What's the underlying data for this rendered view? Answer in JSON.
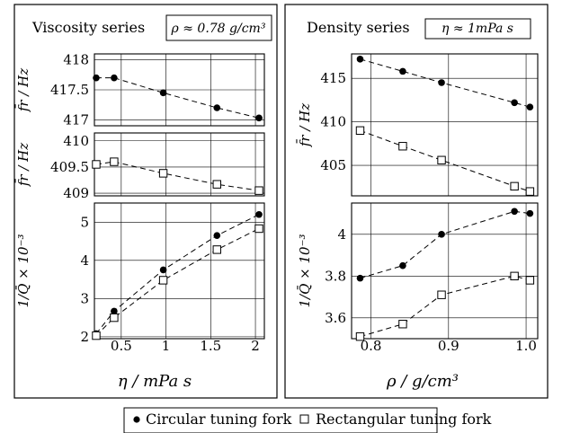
{
  "chart_data": [
    {
      "type": "scatter",
      "panel": "viscosity",
      "title": "Viscosity series",
      "title_condition": "ρ ≈ 0.78 g/cm³",
      "xlabel": "η / mPa s",
      "xlim": [
        0.2,
        2.1
      ],
      "xticks": [
        "0.5",
        "1",
        "1.5",
        "2"
      ],
      "subplots": [
        {
          "ylabel": "f̄r / Hz",
          "ylim": [
            416.9,
            418.1
          ],
          "yticks": [
            "418",
            "417.5",
            "417"
          ],
          "series": [
            {
              "name": "Circular tuning fork",
              "marker": "filled-circle",
              "x": [
                0.22,
                0.42,
                0.97,
                1.57,
                2.04
              ],
              "y": [
                417.7,
                417.7,
                417.45,
                417.2,
                417.03
              ]
            }
          ]
        },
        {
          "ylabel": "f̄r / Hz",
          "ylim": [
            408.95,
            410.15
          ],
          "yticks": [
            "410",
            "409.5",
            "409"
          ],
          "series": [
            {
              "name": "Rectangular tuning fork",
              "marker": "open-square",
              "x": [
                0.22,
                0.42,
                0.97,
                1.57,
                2.04
              ],
              "y": [
                409.55,
                409.6,
                409.38,
                409.17,
                409.05
              ]
            }
          ]
        },
        {
          "ylabel": "1/Q̄ × 10⁻³",
          "ylim": [
            1.95,
            5.5
          ],
          "yticks": [
            "5",
            "4",
            "3",
            "2"
          ],
          "series": [
            {
              "name": "Circular tuning fork",
              "marker": "filled-circle",
              "x": [
                0.22,
                0.42,
                0.97,
                1.57,
                2.04
              ],
              "y": [
                2.08,
                2.67,
                3.75,
                4.65,
                5.2
              ]
            },
            {
              "name": "Rectangular tuning fork",
              "marker": "open-square",
              "x": [
                0.22,
                0.42,
                0.97,
                1.57,
                2.04
              ],
              "y": [
                2.03,
                2.5,
                3.48,
                4.28,
                4.83
              ]
            }
          ]
        }
      ]
    },
    {
      "type": "scatter",
      "panel": "density",
      "title": "Density series",
      "title_condition": "η ≈ 1mPa s",
      "xlabel": "ρ / g/cm³",
      "xlim": [
        0.775,
        1.015
      ],
      "xticks": [
        "0.8",
        "0.9",
        "1.0"
      ],
      "subplots": [
        {
          "ylabel": "f̄r / Hz",
          "ylim": [
            401.5,
            417.8
          ],
          "yticks": [
            "415",
            "410",
            "405"
          ],
          "series": [
            {
              "name": "Circular tuning fork",
              "marker": "filled-circle",
              "x": [
                0.786,
                0.841,
                0.891,
                0.985,
                1.005
              ],
              "y": [
                417.2,
                415.8,
                414.5,
                412.2,
                411.7
              ]
            },
            {
              "name": "Rectangular tuning fork",
              "marker": "open-square",
              "x": [
                0.786,
                0.841,
                0.891,
                0.985,
                1.005
              ],
              "y": [
                409.0,
                407.2,
                405.6,
                402.6,
                402.0
              ]
            }
          ]
        },
        {
          "ylabel": "1/Q̄ × 10⁻³",
          "ylim": [
            3.5,
            4.15
          ],
          "yticks": [
            "4",
            "3.8",
            "3.6"
          ],
          "series": [
            {
              "name": "Circular tuning fork",
              "marker": "filled-circle",
              "x": [
                0.786,
                0.841,
                0.891,
                0.985,
                1.005
              ],
              "y": [
                3.79,
                3.85,
                4.0,
                4.11,
                4.1
              ]
            },
            {
              "name": "Rectangular tuning fork",
              "marker": "open-square",
              "x": [
                0.786,
                0.841,
                0.891,
                0.985,
                1.005
              ],
              "y": [
                3.51,
                3.57,
                3.71,
                3.8,
                3.78
              ]
            }
          ]
        }
      ]
    }
  ],
  "legend": {
    "position": "bottom-center",
    "items": [
      {
        "marker": "filled-circle",
        "label": "Circular tuning fork"
      },
      {
        "marker": "open-square",
        "label": "Rectangular tuning fork"
      }
    ]
  },
  "grid": true
}
